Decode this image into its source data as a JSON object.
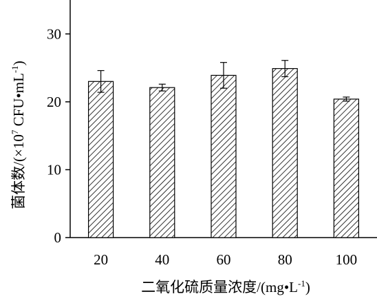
{
  "chart_data": {
    "type": "bar",
    "categories": [
      "20",
      "40",
      "60",
      "80",
      "100"
    ],
    "values": [
      23.0,
      22.1,
      23.9,
      24.9,
      20.4
    ],
    "errors": [
      1.6,
      0.5,
      1.9,
      1.2,
      0.3
    ],
    "title": "",
    "xlabel": "二氧化硫质量浓度/(mg•L",
    "xlabel_sup": "-1",
    "xlabel_suffix": ")",
    "ylabel": "菌体数/(×10",
    "ylabel_sup": "7",
    "ylabel_mid": " CFU•mL",
    "ylabel_sup2": "-1",
    "ylabel_suffix": ")",
    "ylim": [
      0,
      35
    ],
    "yticks": [
      "0",
      "10",
      "20",
      "30"
    ],
    "grid": false,
    "legend": "none",
    "bar_fill": "hatched",
    "colors": {
      "axis": "#000000",
      "bar_stroke": "#000000",
      "hatch": "#000000",
      "background": "#ffffff"
    }
  }
}
